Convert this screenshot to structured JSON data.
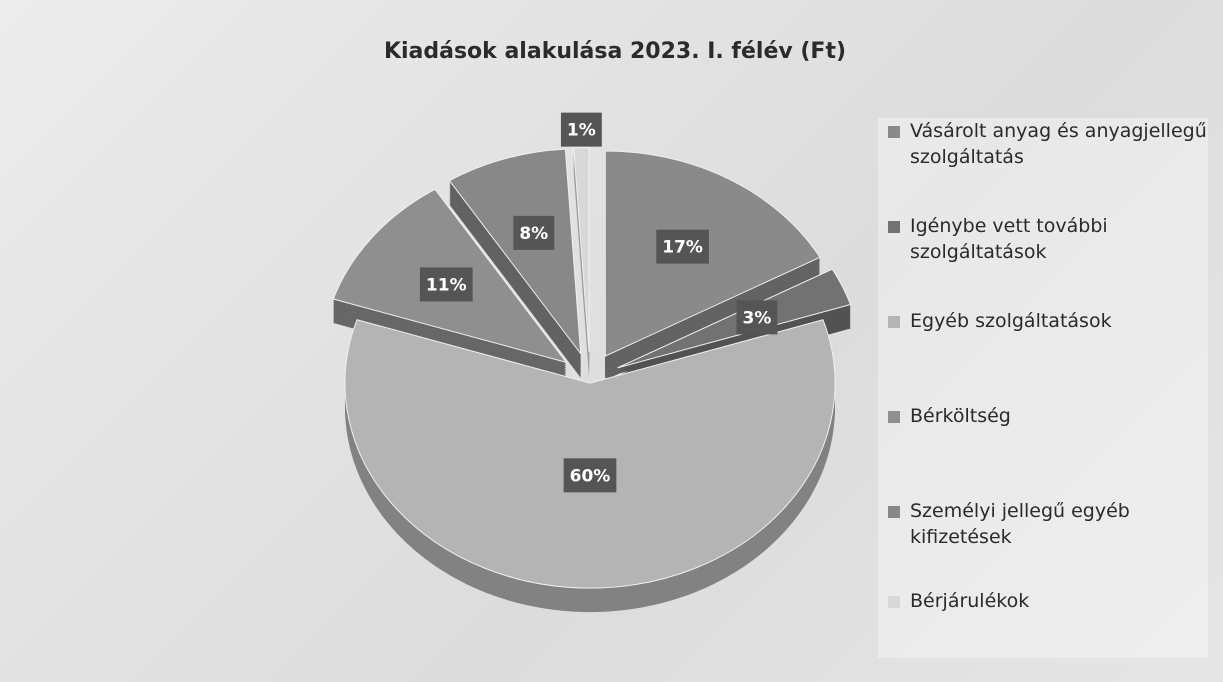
{
  "chart_data": {
    "type": "pie",
    "title": "Kiadások alakulása 2023. I. félév (Ft)",
    "categories": [
      "Vásárolt anyag és anyagjellegű szolgáltatás",
      "Igénybe vett további szolgáltatások",
      "Egyéb szolgáltatások",
      "Bérköltség",
      "Személyi jellegű egyéb kifizetések",
      "Bérjárulékok"
    ],
    "values": [
      17,
      3,
      60,
      11,
      8,
      1
    ],
    "value_labels": [
      "17%",
      "3%",
      "60%",
      "11%",
      "8%",
      "1%"
    ],
    "colors": [
      "#8a8a8a",
      "#727272",
      "#b4b4b4",
      "#8f8f8f",
      "#888888",
      "#d8d8d8"
    ],
    "legend": "right"
  }
}
